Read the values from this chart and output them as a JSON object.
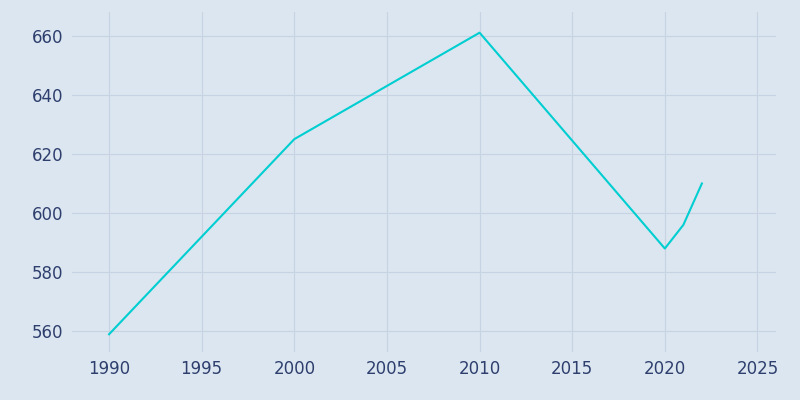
{
  "years": [
    1990,
    2000,
    2010,
    2020,
    2021,
    2022
  ],
  "population": [
    559,
    625,
    661,
    588,
    596,
    610
  ],
  "line_color": "#00CED1",
  "plot_bg_color": "#dce6f0",
  "fig_bg_color": "#dce6f0",
  "grid_color": "#c5d3e3",
  "text_color": "#2e3f6e",
  "xlim": [
    1988,
    2026
  ],
  "ylim": [
    553,
    668
  ],
  "xticks": [
    1990,
    1995,
    2000,
    2005,
    2010,
    2015,
    2020,
    2025
  ],
  "yticks": [
    560,
    580,
    600,
    620,
    640,
    660
  ],
  "linewidth": 1.5,
  "figsize": [
    8.0,
    4.0
  ],
  "dpi": 100,
  "tick_labelsize": 12
}
